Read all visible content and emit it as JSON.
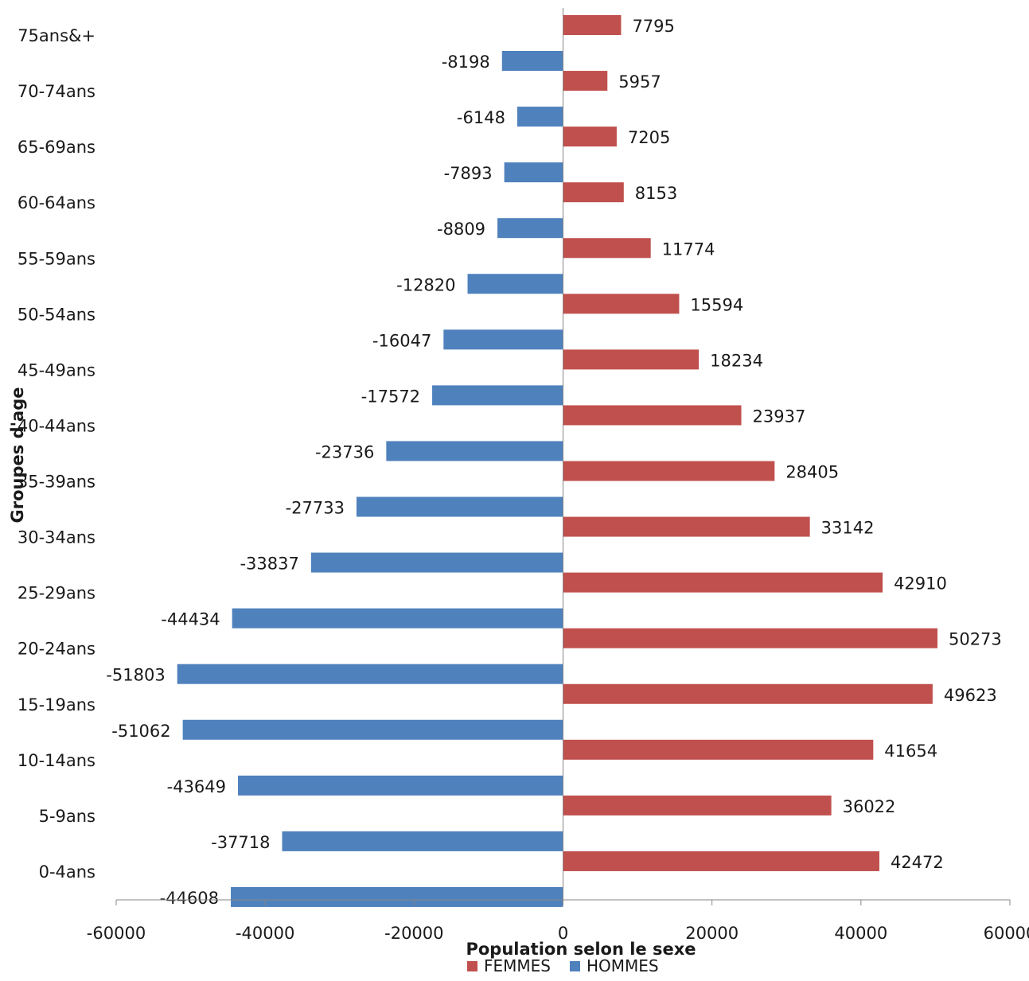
{
  "chart_data": {
    "type": "bar",
    "orientation": "horizontal",
    "categories": [
      "0-4ans",
      "5-9ans",
      "10-14ans",
      "15-19ans",
      "20-24ans",
      "25-29ans",
      "30-34ans",
      "35-39ans",
      "40-44ans",
      "45-49ans",
      "50-54ans",
      "55-59ans",
      "60-64ans",
      "65-69ans",
      "70-74ans",
      "75ans&+"
    ],
    "series": [
      {
        "name": "FEMMES",
        "color": "#c0504d",
        "values": [
          42472,
          36022,
          41654,
          49623,
          50273,
          42910,
          33142,
          28405,
          23937,
          18234,
          15594,
          11774,
          8153,
          7205,
          5957,
          7795
        ],
        "labels": [
          "42472",
          "36022",
          "41654",
          "49623",
          "50273",
          "42910",
          "33142",
          "28405",
          "23937",
          "18234",
          "15594",
          "11774",
          "8153",
          "7205",
          "5957",
          "7795"
        ]
      },
      {
        "name": "HOMMES",
        "color": "#4f81bd",
        "values": [
          -44608,
          -37718,
          -43649,
          -51062,
          -51803,
          -44434,
          -33837,
          -27733,
          -23736,
          -17572,
          -16047,
          -12820,
          -8809,
          -7893,
          -6148,
          -8198
        ],
        "labels": [
          "-44608",
          "-37718",
          "-43649",
          "-51062",
          "-51803",
          "-44434",
          "-33837",
          "-27733",
          "-23736",
          "-17572",
          "-16047",
          "-12820",
          "-8809",
          "-7893",
          "-6148",
          "-8198"
        ]
      }
    ],
    "xlabel": "Population selon le sexe",
    "ylabel": "Groupes d'age",
    "xlim": [
      -60000,
      60000
    ],
    "xticks": [
      -60000,
      -40000,
      -20000,
      0,
      20000,
      40000,
      60000
    ],
    "xtick_labels": [
      "-60000",
      "-40000",
      "-20000",
      "0",
      "20000",
      "40000",
      "60000"
    ],
    "grid": false,
    "legend": {
      "position": "bottom",
      "items": [
        "FEMMES",
        "HOMMES"
      ]
    }
  }
}
